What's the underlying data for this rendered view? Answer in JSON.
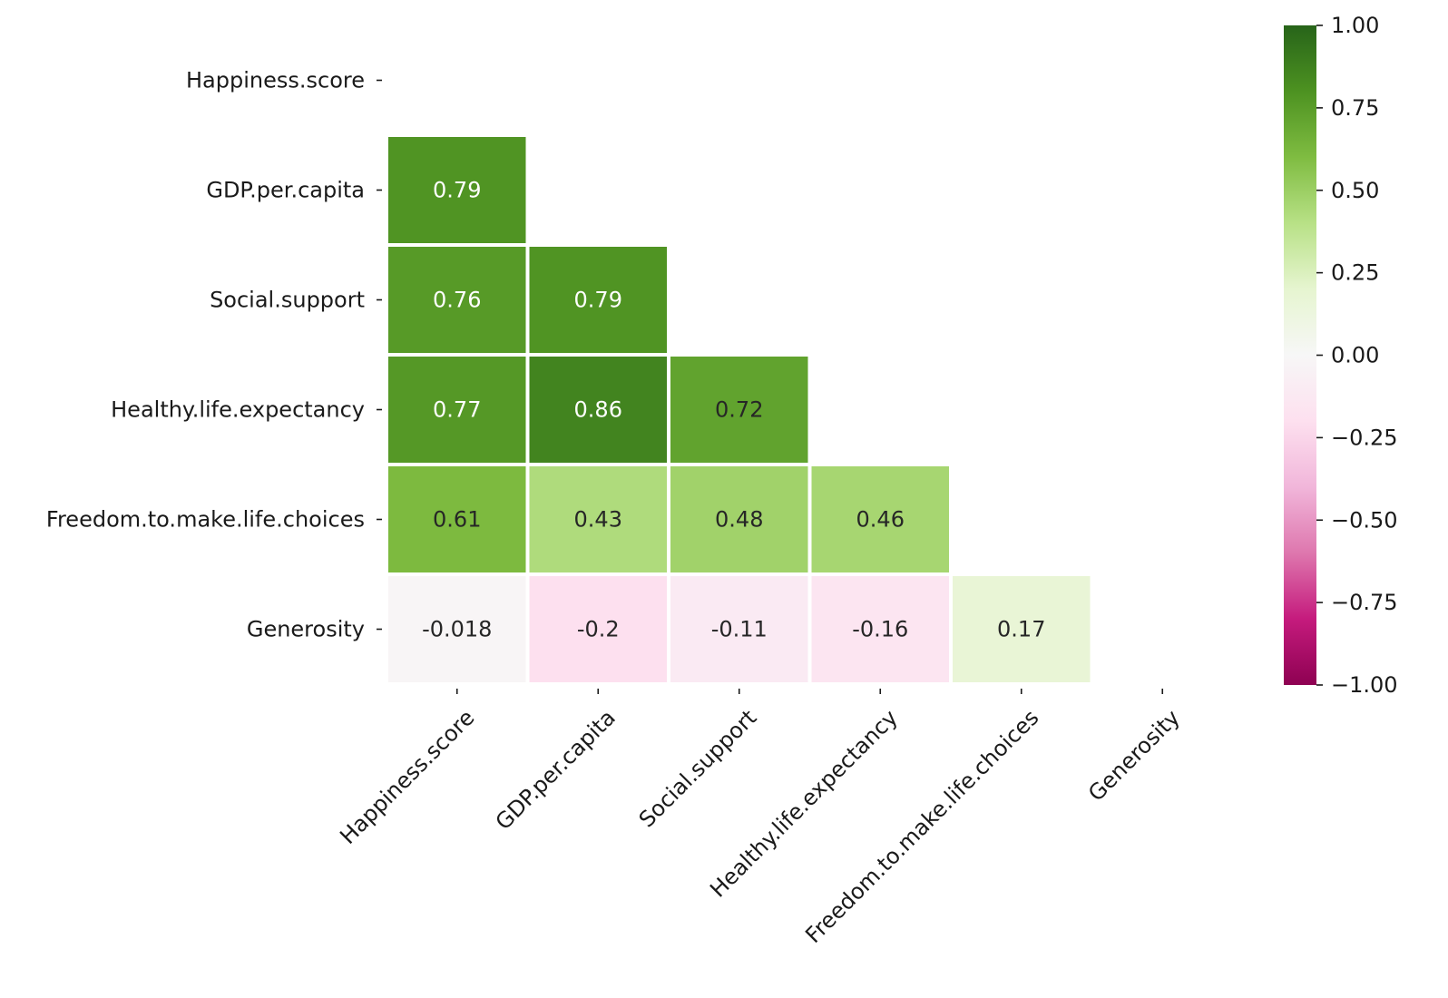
{
  "chart_data": {
    "type": "heatmap",
    "title": "",
    "xlabel": "",
    "ylabel": "",
    "variables": [
      "Happiness.score",
      "GDP.per.capita",
      "Social.support",
      "Healthy.life.expectancy",
      "Freedom.to.make.life.choices",
      "Generosity"
    ],
    "mask": "upper-triangle-including-diagonal",
    "cells": [
      {
        "row": 1,
        "col": 0,
        "value": 0.79,
        "label": "0.79"
      },
      {
        "row": 2,
        "col": 0,
        "value": 0.76,
        "label": "0.76"
      },
      {
        "row": 2,
        "col": 1,
        "value": 0.79,
        "label": "0.79"
      },
      {
        "row": 3,
        "col": 0,
        "value": 0.77,
        "label": "0.77"
      },
      {
        "row": 3,
        "col": 1,
        "value": 0.86,
        "label": "0.86"
      },
      {
        "row": 3,
        "col": 2,
        "value": 0.72,
        "label": "0.72"
      },
      {
        "row": 4,
        "col": 0,
        "value": 0.61,
        "label": "0.61"
      },
      {
        "row": 4,
        "col": 1,
        "value": 0.43,
        "label": "0.43"
      },
      {
        "row": 4,
        "col": 2,
        "value": 0.48,
        "label": "0.48"
      },
      {
        "row": 4,
        "col": 3,
        "value": 0.46,
        "label": "0.46"
      },
      {
        "row": 5,
        "col": 0,
        "value": -0.018,
        "label": "-0.018"
      },
      {
        "row": 5,
        "col": 1,
        "value": -0.2,
        "label": "-0.2"
      },
      {
        "row": 5,
        "col": 2,
        "value": -0.11,
        "label": "-0.11"
      },
      {
        "row": 5,
        "col": 3,
        "value": -0.16,
        "label": "-0.16"
      },
      {
        "row": 5,
        "col": 4,
        "value": 0.17,
        "label": "0.17"
      }
    ],
    "colorbar": {
      "cmap": "PiYG",
      "vmin": -1.0,
      "vmax": 1.0,
      "ticks": [
        1.0,
        0.75,
        0.5,
        0.25,
        0.0,
        -0.25,
        -0.5,
        -0.75,
        -1.0
      ],
      "tick_labels": [
        "1.00",
        "0.75",
        "0.50",
        "0.25",
        "0.00",
        "−0.25",
        "−0.50",
        "−0.75",
        "−1.00"
      ],
      "colors": [
        "#8e0152",
        "#c51b7d",
        "#de77ae",
        "#f1b6da",
        "#fde0ef",
        "#f7f7f7",
        "#e6f5d0",
        "#b8e186",
        "#7fbc41",
        "#4d9221",
        "#276419"
      ]
    }
  }
}
